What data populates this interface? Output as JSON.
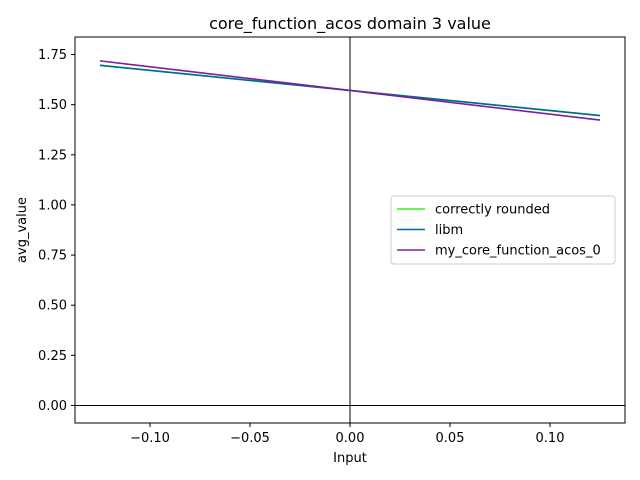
{
  "chart_data": {
    "type": "line",
    "title": "core_function_acos domain 3 value",
    "xlabel": "Input",
    "ylabel": "avg_value",
    "xlim": [
      -0.1375,
      0.1375
    ],
    "ylim": [
      -0.0875,
      1.8375
    ],
    "x_ticks": [
      -0.1,
      -0.05,
      0.0,
      0.05,
      0.1
    ],
    "x_tick_labels": [
      "−0.10",
      "−0.05",
      "0.00",
      "0.05",
      "0.10"
    ],
    "y_ticks": [
      0.0,
      0.25,
      0.5,
      0.75,
      1.0,
      1.25,
      1.5,
      1.75
    ],
    "y_tick_labels": [
      "0.00",
      "0.25",
      "0.50",
      "0.75",
      "1.00",
      "1.25",
      "1.50",
      "1.75"
    ],
    "grid": false,
    "reference_lines": {
      "x": 0,
      "y": 0
    },
    "legend_position": "center-right",
    "series": [
      {
        "name": "correctly rounded",
        "color": "#33ee22",
        "x": [
          -0.125,
          0.0,
          0.125
        ],
        "values": [
          1.6961,
          1.5708,
          1.4455
        ]
      },
      {
        "name": "libm",
        "color": "#006b8f",
        "x": [
          -0.125,
          0.0,
          0.125
        ],
        "values": [
          1.6961,
          1.5708,
          1.4455
        ]
      },
      {
        "name": "my_core_function_acos_0",
        "color": "#7a1fa2",
        "x": [
          -0.125,
          0.0,
          0.125
        ],
        "values": [
          1.7185,
          1.5708,
          1.4231
        ]
      }
    ]
  }
}
